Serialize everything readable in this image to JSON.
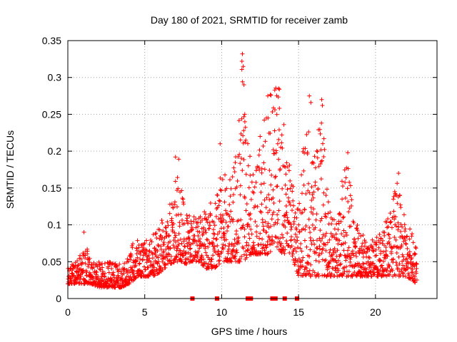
{
  "chart_data": {
    "type": "scatter",
    "title": "Day 180 of 2021, SRMTID for receiver zamb",
    "xlabel": "GPS time / hours",
    "ylabel": "SRMTID / TECUs",
    "xlim": [
      0,
      24
    ],
    "ylim": [
      0,
      0.35
    ],
    "xticks": [
      0,
      5,
      10,
      15,
      20
    ],
    "xtick_labels": [
      "0",
      "5",
      "10",
      "15",
      "20"
    ],
    "yticks": [
      0,
      0.05,
      0.1,
      0.15,
      0.2,
      0.25,
      0.3,
      0.35
    ],
    "ytick_labels": [
      "0",
      "0.05",
      "0.1",
      "0.15",
      "0.2",
      "0.25",
      "0.3",
      "0.35"
    ],
    "grid": true,
    "marker": "plus",
    "color": "#ff0000",
    "envelope": {
      "x": [
        0,
        0.5,
        1,
        1.1,
        1.5,
        2,
        3,
        3.5,
        4,
        4.3,
        4.5,
        5,
        5.5,
        6,
        6.5,
        7,
        7.2,
        7.5,
        8,
        8.5,
        9,
        9.5,
        10,
        10.5,
        11,
        11.3,
        11.5,
        12,
        12.5,
        13,
        13.5,
        14,
        14.5,
        15,
        15.5,
        16,
        16.5,
        17,
        17.5,
        18,
        18.5,
        19,
        19.5,
        20,
        20.5,
        21,
        21.5,
        22,
        22.7
      ],
      "low": [
        0.02,
        0.02,
        0.02,
        0.02,
        0.02,
        0.015,
        0.015,
        0.015,
        0.02,
        0.025,
        0.03,
        0.03,
        0.03,
        0.035,
        0.045,
        0.05,
        0.05,
        0.045,
        0.05,
        0.05,
        0.04,
        0.04,
        0.05,
        0.05,
        0.05,
        0.05,
        0.05,
        0.06,
        0.06,
        0.06,
        0.07,
        0.06,
        0.06,
        0.03,
        0.03,
        0.03,
        0.03,
        0.03,
        0.03,
        0.03,
        0.03,
        0.03,
        0.03,
        0.03,
        0.03,
        0.03,
        0.03,
        0.03,
        0.02
      ],
      "high": [
        0.045,
        0.05,
        0.065,
        0.09,
        0.05,
        0.05,
        0.05,
        0.05,
        0.055,
        0.09,
        0.08,
        0.08,
        0.09,
        0.1,
        0.13,
        0.16,
        0.19,
        0.14,
        0.11,
        0.12,
        0.12,
        0.14,
        0.2,
        0.17,
        0.2,
        0.33,
        0.25,
        0.18,
        0.22,
        0.27,
        0.29,
        0.25,
        0.18,
        0.12,
        0.27,
        0.21,
        0.27,
        0.12,
        0.1,
        0.2,
        0.15,
        0.09,
        0.08,
        0.08,
        0.1,
        0.12,
        0.17,
        0.11,
        0.07
      ]
    },
    "spikes": [
      {
        "x": 1.05,
        "y": 0.09
      },
      {
        "x": 7.0,
        "y": 0.192
      },
      {
        "x": 9.9,
        "y": 0.21
      },
      {
        "x": 11.35,
        "y": 0.332
      },
      {
        "x": 11.4,
        "y": 0.315
      },
      {
        "x": 11.45,
        "y": 0.29
      },
      {
        "x": 11.5,
        "y": 0.25
      },
      {
        "x": 12.5,
        "y": 0.22
      },
      {
        "x": 13.0,
        "y": 0.275
      },
      {
        "x": 13.7,
        "y": 0.285
      },
      {
        "x": 13.75,
        "y": 0.284
      },
      {
        "x": 15.7,
        "y": 0.275
      },
      {
        "x": 15.8,
        "y": 0.266
      },
      {
        "x": 16.5,
        "y": 0.27
      },
      {
        "x": 16.55,
        "y": 0.262
      },
      {
        "x": 18.2,
        "y": 0.198
      },
      {
        "x": 21.5,
        "y": 0.17
      }
    ],
    "baseline_markers": {
      "y": 0,
      "x": [
        8.1,
        9.7,
        11.7,
        11.9,
        13.3,
        13.5,
        14.1,
        14.9
      ]
    }
  }
}
